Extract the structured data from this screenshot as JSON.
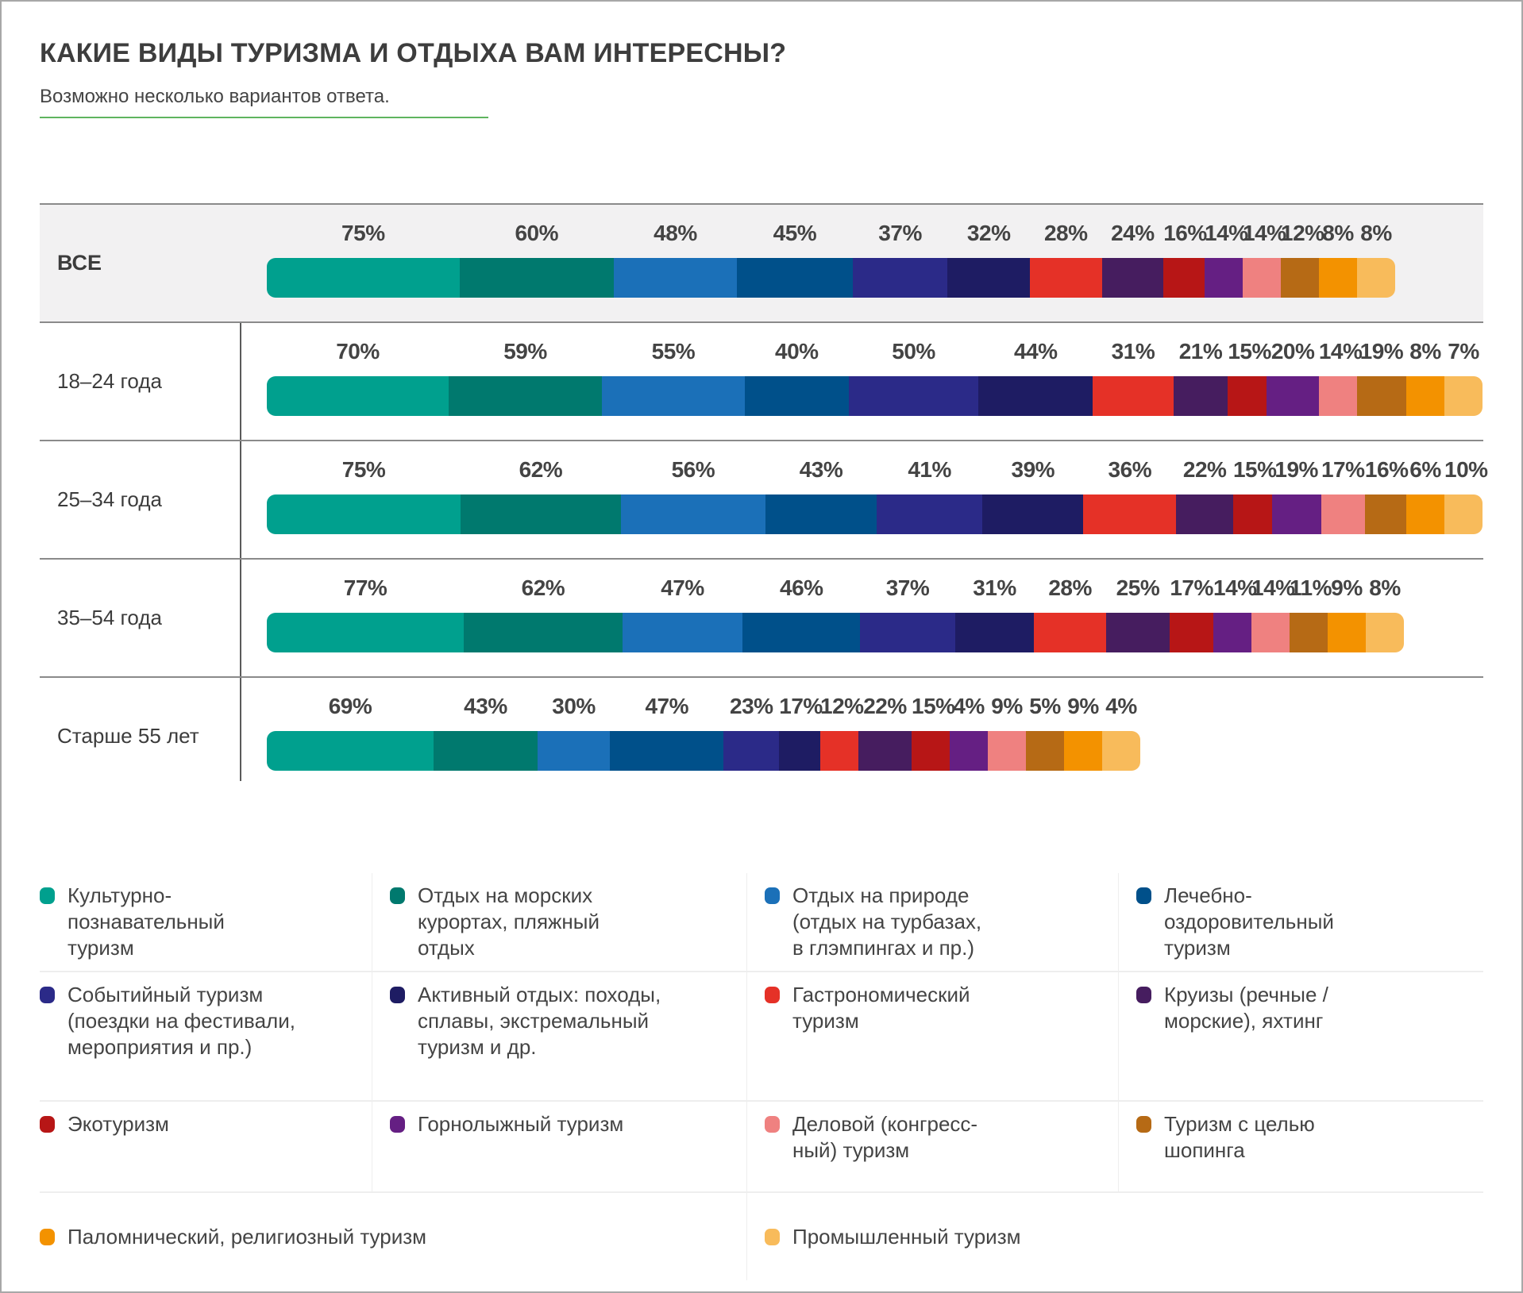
{
  "header": {
    "title": "КАКИЕ ВИДЫ ТУРИЗМА И ОТДЫХА ВАМ ИНТЕРЕСНЫ?",
    "subtitle": "Возможно несколько вариантов ответа."
  },
  "chart_data": {
    "type": "bar",
    "orientation": "horizontal-stacked",
    "title": "КАКИЕ ВИДЫ ТУРИЗМА И ОТДЫХА ВАМ ИНТЕРЕСНЫ?",
    "subtitle": "Возможно несколько вариантов ответа.",
    "xlabel": "",
    "ylabel": "",
    "grid": false,
    "legend_position": "bottom",
    "unit": "%",
    "categories": [
      "ВСЕ",
      "18–24 года",
      "25–34 года",
      "35–54 года",
      "Старше 55 лет"
    ],
    "series": [
      {
        "name": "Культурно-познавательный туризм",
        "color": "#00a08e",
        "values": [
          75,
          70,
          75,
          77,
          69
        ]
      },
      {
        "name": "Отдых на морских курортах, пляжный отдых",
        "color": "#00796e",
        "values": [
          60,
          59,
          62,
          62,
          43
        ]
      },
      {
        "name": "Отдых на природе (отдых на турбазах, в глэмпингах и пр.)",
        "color": "#1b70b8",
        "values": [
          48,
          55,
          56,
          47,
          30
        ]
      },
      {
        "name": "Лечебно-оздоровительный туризм",
        "color": "#00508a",
        "values": [
          45,
          40,
          43,
          46,
          47
        ]
      },
      {
        "name": "Событийный туризм (поездки на фестивали, мероприятия и пр.)",
        "color": "#2b2a88",
        "values": [
          37,
          50,
          41,
          37,
          23
        ]
      },
      {
        "name": "Активный отдых: походы, сплавы, экстремальный туризм и др.",
        "color": "#1e1c63",
        "values": [
          32,
          44,
          39,
          31,
          17
        ]
      },
      {
        "name": "Гастрономический туризм",
        "color": "#e53127",
        "values": [
          28,
          31,
          36,
          28,
          12
        ]
      },
      {
        "name": "Круизы (речные / морские), яхтинг",
        "color": "#461d5f",
        "values": [
          24,
          21,
          22,
          25,
          22
        ]
      },
      {
        "name": "Экотуризм",
        "color": "#b71616",
        "values": [
          16,
          15,
          15,
          17,
          15
        ]
      },
      {
        "name": "Горнолыжный туризм",
        "color": "#651f83",
        "values": [
          14,
          20,
          19,
          14,
          4
        ]
      },
      {
        "name": "Деловой (конгресс-ный) туризм",
        "color": "#ef8180",
        "values": [
          14,
          14,
          17,
          14,
          9
        ]
      },
      {
        "name": "Туризм с целью шопинга",
        "color": "#b66a15",
        "values": [
          12,
          19,
          16,
          11,
          5
        ]
      },
      {
        "name": "Паломнический, религиозный туризм",
        "color": "#f39200",
        "values": [
          8,
          8,
          6,
          9,
          9
        ]
      },
      {
        "name": "Промышленный туризм",
        "color": "#f8bb5b",
        "values": [
          8,
          7,
          10,
          8,
          4
        ]
      }
    ]
  },
  "legend": {
    "rows": [
      [
        {
          "label": "Культурно-\nпознавательный\nтуризм",
          "color": "#00a08e"
        },
        {
          "label": "Отдых на морских\nкурортах, пляжный\nотдых",
          "color": "#00796e"
        },
        {
          "label": "Отдых на природе\n(отдых на турбазах,\nв глэмпингах и пр.)",
          "color": "#1b70b8"
        },
        {
          "label": "Лечебно-\nоздоровительный\nтуризм",
          "color": "#00508a"
        }
      ],
      [
        {
          "label": "Событийный туризм\n(поездки на фестивали,\nмероприятия и пр.)",
          "color": "#2b2a88"
        },
        {
          "label": "Активный отдых: походы,\nсплавы, экстремальный\nтуризм и др.",
          "color": "#1e1c63"
        },
        {
          "label": "Гастрономический\nтуризм",
          "color": "#e53127"
        },
        {
          "label": "Круизы (речные /\nморские), яхтинг",
          "color": "#461d5f"
        }
      ],
      [
        {
          "label": "Экотуризм",
          "color": "#b71616"
        },
        {
          "label": "Горнолыжный туризм",
          "color": "#651f83"
        },
        {
          "label": "Деловой (конгресс-\nный) туризм",
          "color": "#ef8180"
        },
        {
          "label": "Туризм с целью\nшопинга",
          "color": "#b66a15"
        }
      ],
      [
        {
          "label": "Паломнический, религиозный туризм",
          "color": "#f39200"
        },
        {
          "label": "Промышленный туризм",
          "color": "#f8bb5b"
        }
      ]
    ]
  }
}
